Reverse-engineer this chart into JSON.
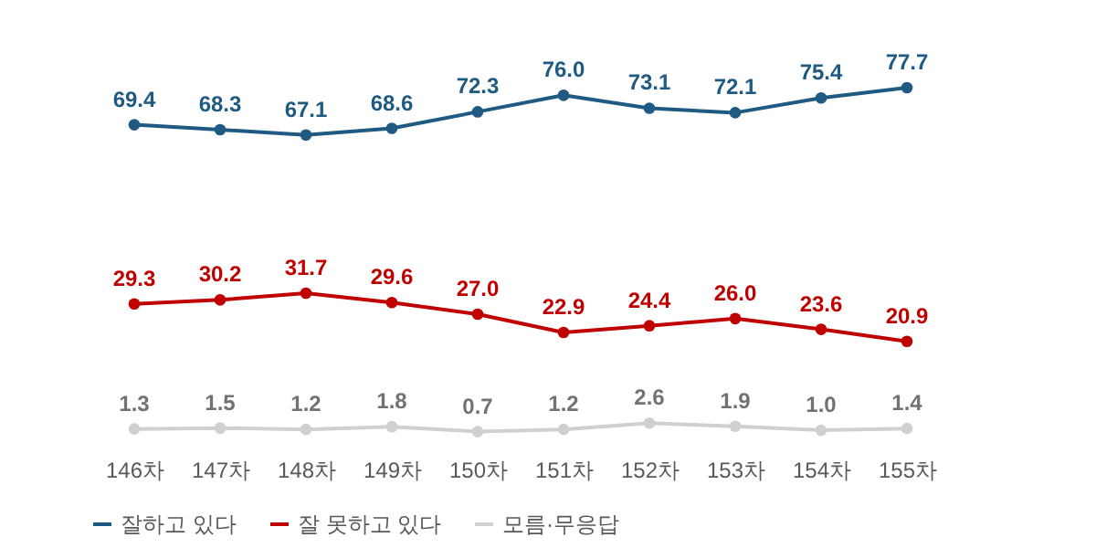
{
  "chart_data": {
    "type": "line",
    "categories": [
      "146차",
      "147차",
      "148차",
      "149차",
      "150차",
      "151차",
      "152차",
      "153차",
      "154차",
      "155차"
    ],
    "series": [
      {
        "name": "잘하고 있다",
        "color": "#1f5a82",
        "values": [
          69.4,
          68.3,
          67.1,
          68.6,
          72.3,
          76.0,
          73.1,
          72.1,
          75.4,
          77.7
        ],
        "value_labels": [
          "69.4",
          "68.3",
          "67.1",
          "68.6",
          "72.3",
          "76.0",
          "73.1",
          "72.1",
          "75.4",
          "77.7"
        ]
      },
      {
        "name": "잘 못하고 있다",
        "color": "#c00000",
        "values": [
          29.3,
          30.2,
          31.7,
          29.6,
          27.0,
          22.9,
          24.4,
          26.0,
          23.6,
          20.9
        ],
        "value_labels": [
          "29.3",
          "30.2",
          "31.7",
          "29.6",
          "27.0",
          "22.9",
          "24.4",
          "26.0",
          "23.6",
          "20.9"
        ]
      },
      {
        "name": "모름·무응답",
        "color": "#d0d0d0",
        "values": [
          1.3,
          1.5,
          1.2,
          1.8,
          0.7,
          1.2,
          2.6,
          1.9,
          1.0,
          1.4
        ],
        "value_labels": [
          "1.3",
          "1.5",
          "1.2",
          "1.8",
          "0.7",
          "1.2",
          "2.6",
          "1.9",
          "1.0",
          "1.4"
        ]
      }
    ],
    "marker": "circle",
    "legend": "bottom",
    "tick_labels": "x"
  }
}
